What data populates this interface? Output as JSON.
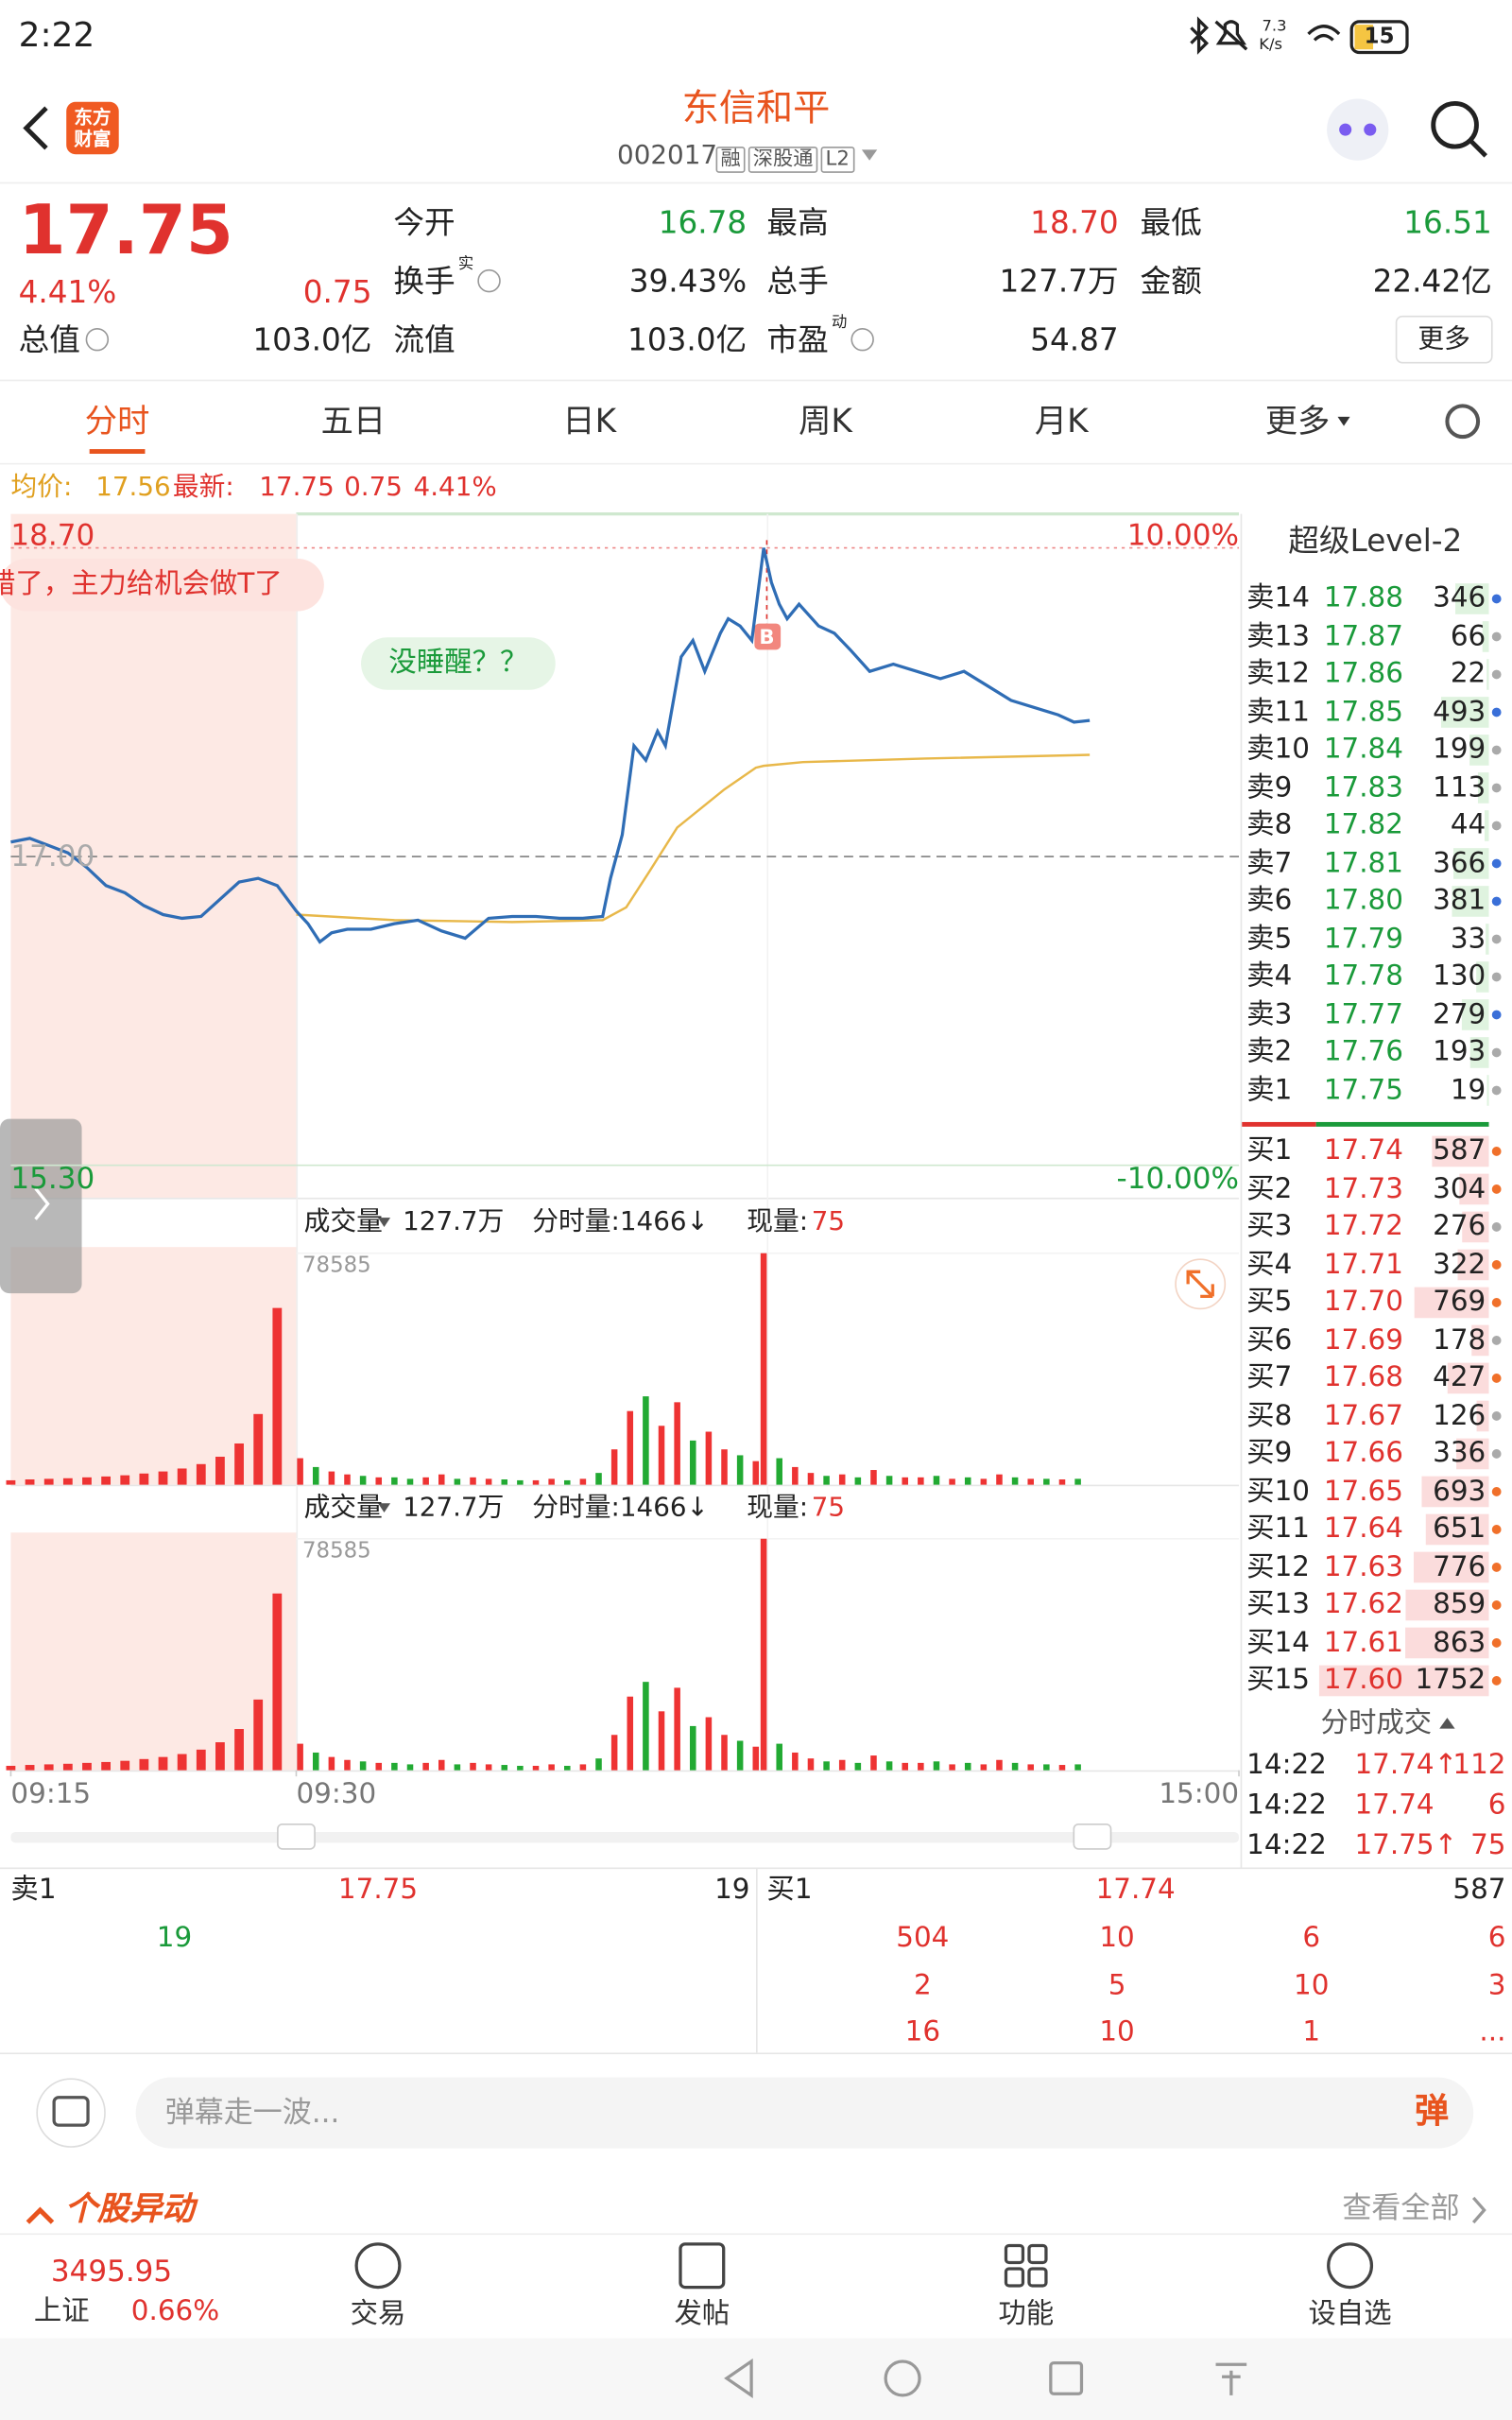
{
  "status": {
    "time": "2:22",
    "speed": "7.3",
    "speed_unit": "K/s",
    "battery": "15"
  },
  "header": {
    "logo": "东方财富",
    "title": "东信和平",
    "code": "002017",
    "tags": [
      "融",
      "深股通",
      "L2"
    ]
  },
  "quote": {
    "price": "17.75",
    "percent": "4.41%",
    "change": "0.75",
    "more": "更多",
    "fields": [
      {
        "label": "今开",
        "value": "16.78",
        "color": "#1a9a3a"
      },
      {
        "label": "最高",
        "value": "18.70",
        "color": "#e0322e"
      },
      {
        "label": "最低",
        "value": "16.51",
        "color": "#1a9a3a"
      },
      {
        "label": "换手",
        "sup": "实",
        "value": "39.43%",
        "color": "#222"
      },
      {
        "label": "总手",
        "value": "127.7万",
        "color": "#222"
      },
      {
        "label": "金额",
        "value": "22.42亿",
        "color": "#222"
      },
      {
        "label": "总值",
        "value": "103.0亿",
        "color": "#222"
      },
      {
        "label": "流值",
        "value": "103.0亿",
        "color": "#222"
      },
      {
        "label": "市盈",
        "sup": "动",
        "value": "54.87",
        "color": "#222"
      }
    ]
  },
  "tabs": [
    "分时",
    "五日",
    "日K",
    "周K",
    "月K",
    "更多"
  ],
  "info": {
    "avg_label": "均价:",
    "avg": "17.56",
    "latest_label": "最新:",
    "latest": "17.75",
    "change": "0.75",
    "percent": "4.41%"
  },
  "price_chart": {
    "type": "line",
    "xlim": [
      0,
      255
    ],
    "xticks": [
      {
        "value": 0,
        "label": "09:15"
      },
      {
        "value": 15,
        "label": "09:30"
      },
      {
        "value": 255,
        "label": "15:00"
      }
    ],
    "ylim": [
      15.3,
      18.7
    ],
    "yticks": [
      {
        "value": 18.7,
        "label": "18.70"
      },
      {
        "value": 17.0,
        "label": "17.00"
      },
      {
        "value": 15.3,
        "label": "15.30"
      }
    ],
    "pct_labels": [
      "10.00%",
      "-10.00%"
    ],
    "comments": [
      "错了，主力给机会做T了",
      "没睡醒？？"
    ],
    "marker": "B",
    "series": [
      {
        "color": "#2f6db5",
        "x": [
          0,
          1,
          2,
          3,
          4,
          5,
          6,
          7,
          8,
          9,
          10,
          12,
          13,
          14,
          15,
          18,
          21,
          24,
          28,
          34,
          40,
          46,
          52,
          58,
          64,
          70,
          76,
          82,
          88,
          93,
          95,
          98,
          101,
          104,
          107,
          109,
          113,
          116,
          119,
          123,
          125,
          128,
          131,
          134,
          136,
          138,
          140,
          143,
          148,
          152,
          156,
          161,
          167,
          173,
          179,
          185,
          191,
          197,
          203,
          209,
          213,
          217
        ],
        "values": [
          17.08,
          17.1,
          17.06,
          17.02,
          16.94,
          16.84,
          16.8,
          16.73,
          16.68,
          16.66,
          16.67,
          16.86,
          16.88,
          16.84,
          16.7,
          16.63,
          16.53,
          16.58,
          16.6,
          16.6,
          16.63,
          16.65,
          16.59,
          16.55,
          16.66,
          16.67,
          16.67,
          16.66,
          16.66,
          16.67,
          16.88,
          17.12,
          17.61,
          17.53,
          17.69,
          17.61,
          18.1,
          18.19,
          18.02,
          18.23,
          18.31,
          18.27,
          18.19,
          18.7,
          18.51,
          18.39,
          18.31,
          18.39,
          18.27,
          18.23,
          18.14,
          18.02,
          18.06,
          18.02,
          17.98,
          18.02,
          17.94,
          17.86,
          17.82,
          17.78,
          17.74,
          17.75
        ]
      },
      {
        "color": "#e8b84a",
        "x": [
          15,
          40,
          70,
          93,
          99,
          105,
          112,
          124,
          132,
          134,
          144,
          175,
          217
        ],
        "values": [
          16.68,
          16.65,
          16.64,
          16.65,
          16.72,
          16.92,
          17.16,
          17.37,
          17.49,
          17.5,
          17.52,
          17.54,
          17.56
        ]
      }
    ]
  },
  "volume": {
    "type": "bar",
    "label": "成交量",
    "total": "127.7万",
    "minute_volume": "分时量:1466↓",
    "current_label": "现量:",
    "current": "75",
    "ylim": [
      0,
      78585
    ],
    "yticks": [
      78585
    ],
    "x": [
      0,
      1,
      2,
      3,
      4,
      5,
      6,
      7,
      8,
      9,
      10,
      11,
      12,
      13,
      14,
      16,
      20,
      24,
      28,
      32,
      36,
      40,
      44,
      48,
      52,
      56,
      60,
      64,
      68,
      72,
      76,
      80,
      84,
      88,
      92,
      96,
      100,
      104,
      108,
      112,
      116,
      120,
      124,
      128,
      132,
      134,
      138,
      142,
      146,
      150,
      154,
      158,
      162,
      166,
      170,
      174,
      178,
      182,
      186,
      190,
      194,
      198,
      202,
      206,
      210,
      214
    ],
    "values": [
      1500,
      1800,
      2000,
      2200,
      2500,
      2800,
      3200,
      3800,
      4500,
      5500,
      7000,
      9500,
      14000,
      24000,
      60000,
      9000,
      6000,
      4500,
      3500,
      3000,
      2500,
      2500,
      2000,
      2500,
      3500,
      2000,
      2500,
      2000,
      1800,
      1500,
      1500,
      2000,
      1500,
      2000,
      4000,
      12000,
      25000,
      30000,
      20000,
      28000,
      15000,
      18000,
      12000,
      10000,
      8000,
      78585,
      9000,
      6000,
      4000,
      3000,
      3500,
      2500,
      5000,
      3000,
      2500,
      2500,
      3000,
      2000,
      2500,
      2000,
      3500,
      2500,
      2000,
      2000,
      1800,
      2000
    ],
    "colors": [
      "#e33",
      "#e33",
      "#e33",
      "#e33",
      "#e33",
      "#e33",
      "#e33",
      "#e33",
      "#e33",
      "#e33",
      "#e33",
      "#e33",
      "#e33",
      "#e33",
      "#e33",
      "#e33",
      "#2a3",
      "#e33",
      "#e33",
      "#2a3",
      "#e33",
      "#2a3",
      "#2a3",
      "#e33",
      "#e33",
      "#2a3",
      "#e33",
      "#e33",
      "#2a3",
      "#2a3",
      "#e33",
      "#e33",
      "#2a3",
      "#e33",
      "#2a3",
      "#e33",
      "#e33",
      "#2a3",
      "#e33",
      "#e33",
      "#2a3",
      "#e33",
      "#e33",
      "#2a3",
      "#e33",
      "#e33",
      "#2a3",
      "#e33",
      "#e33",
      "#2a3",
      "#e33",
      "#2a3",
      "#e33",
      "#2a3",
      "#e33",
      "#e33",
      "#2a3",
      "#e33",
      "#2a3",
      "#e33",
      "#e33",
      "#2a3",
      "#e33",
      "#2a3",
      "#e33",
      "#2a3"
    ]
  },
  "book": {
    "title": "超级Level-2",
    "max": 1752,
    "asks": [
      {
        "label": "卖14",
        "price": "17.88",
        "volume": 346,
        "dot": "#3a6fd8"
      },
      {
        "label": "卖13",
        "price": "17.87",
        "volume": 66,
        "dot": "#aaa"
      },
      {
        "label": "卖12",
        "price": "17.86",
        "volume": 22,
        "dot": "#aaa"
      },
      {
        "label": "卖11",
        "price": "17.85",
        "volume": 493,
        "dot": "#3a6fd8"
      },
      {
        "label": "卖10",
        "price": "17.84",
        "volume": 199,
        "dot": "#aaa"
      },
      {
        "label": "卖9",
        "price": "17.83",
        "volume": 113,
        "dot": "#aaa"
      },
      {
        "label": "卖8",
        "price": "17.82",
        "volume": 44,
        "dot": "#aaa"
      },
      {
        "label": "卖7",
        "price": "17.81",
        "volume": 366,
        "dot": "#3a6fd8"
      },
      {
        "label": "卖6",
        "price": "17.80",
        "volume": 381,
        "dot": "#3a6fd8"
      },
      {
        "label": "卖5",
        "price": "17.79",
        "volume": 33,
        "dot": "#aaa"
      },
      {
        "label": "卖4",
        "price": "17.78",
        "volume": 130,
        "dot": "#aaa"
      },
      {
        "label": "卖3",
        "price": "17.77",
        "volume": 279,
        "dot": "#3a6fd8"
      },
      {
        "label": "卖2",
        "price": "17.76",
        "volume": 193,
        "dot": "#aaa"
      },
      {
        "label": "卖1",
        "price": "17.75",
        "volume": 19,
        "dot": "#aaa"
      }
    ],
    "bids": [
      {
        "label": "买1",
        "price": "17.74",
        "volume": 587,
        "dot": "#f0702a"
      },
      {
        "label": "买2",
        "price": "17.73",
        "volume": 304,
        "dot": "#f0702a"
      },
      {
        "label": "买3",
        "price": "17.72",
        "volume": 276,
        "dot": "#aaa"
      },
      {
        "label": "买4",
        "price": "17.71",
        "volume": 322,
        "dot": "#f0702a"
      },
      {
        "label": "买5",
        "price": "17.70",
        "volume": 769,
        "dot": "#f0702a"
      },
      {
        "label": "买6",
        "price": "17.69",
        "volume": 178,
        "dot": "#aaa"
      },
      {
        "label": "买7",
        "price": "17.68",
        "volume": 427,
        "dot": "#f0702a"
      },
      {
        "label": "买8",
        "price": "17.67",
        "volume": 126,
        "dot": "#aaa"
      },
      {
        "label": "买9",
        "price": "17.66",
        "volume": 336,
        "dot": "#aaa"
      },
      {
        "label": "买10",
        "price": "17.65",
        "volume": 693,
        "dot": "#f0702a"
      },
      {
        "label": "买11",
        "price": "17.64",
        "volume": 651,
        "dot": "#f0702a"
      },
      {
        "label": "买12",
        "price": "17.63",
        "volume": 776,
        "dot": "#f0702a"
      },
      {
        "label": "买13",
        "price": "17.62",
        "volume": 859,
        "dot": "#f0702a"
      },
      {
        "label": "买14",
        "price": "17.61",
        "volume": 863,
        "dot": "#f0702a"
      },
      {
        "label": "买15",
        "price": "17.60",
        "volume": 1752,
        "dot": "#f0702a"
      }
    ],
    "trades_title": "分时成交",
    "trades": [
      {
        "time": "14:22",
        "price": "17.74↑",
        "volume": "112"
      },
      {
        "time": "14:22",
        "price": "17.74",
        "volume": "6"
      },
      {
        "time": "14:22",
        "price": "17.75↑",
        "volume": "75"
      }
    ]
  },
  "queue": {
    "ask_label": "卖1",
    "ask_price": "17.75",
    "ask_volume": "19",
    "ask_orders": [
      "19"
    ],
    "bid_label": "买1",
    "bid_price": "17.74",
    "bid_volume": "587",
    "bid_orders": [
      [
        "504",
        "10",
        "6",
        "6"
      ],
      [
        "2",
        "5",
        "10",
        "3"
      ],
      [
        "16",
        "10",
        "1",
        "..."
      ]
    ]
  },
  "comment": {
    "placeholder": "弹幕走一波...",
    "button": "弹"
  },
  "alerts": {
    "title": "个股异动",
    "more": "查看全部"
  },
  "nav": {
    "index_value": "3495.95",
    "index_name": "上证",
    "index_change": "0.66%",
    "items": [
      "交易",
      "发帖",
      "功能",
      "设自选"
    ]
  }
}
